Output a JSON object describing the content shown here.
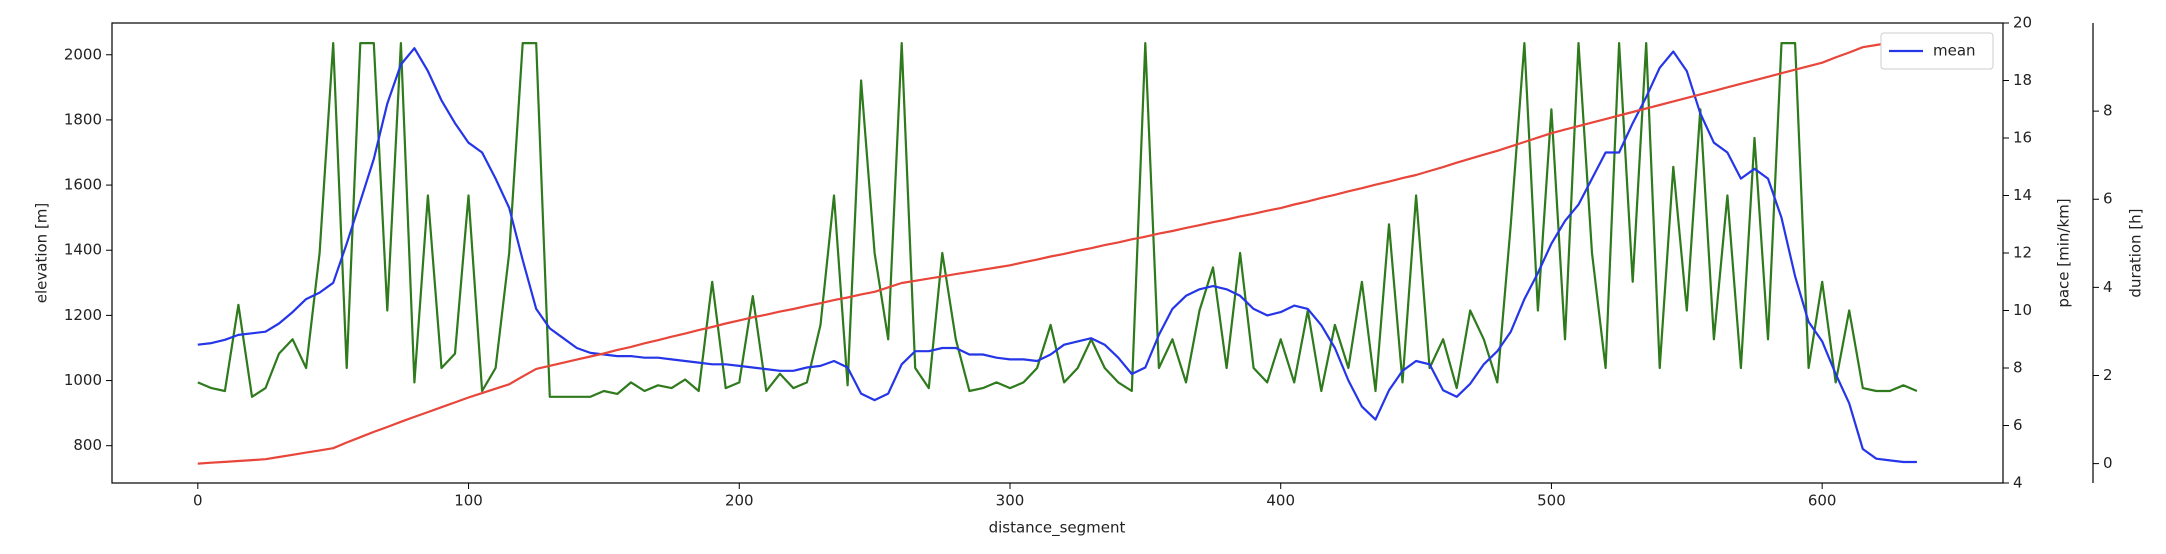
{
  "chart_data": {
    "type": "line",
    "xlabel": "distance_segment",
    "ylabel": "elevation [m]",
    "y2label": "pace [min/km]",
    "y3label": "duration [h]",
    "xlim": [
      -31.7,
      666.8
    ],
    "xticks": [
      0,
      100,
      200,
      300,
      400,
      500,
      600
    ],
    "ylim": [
      685.5,
      2097.5
    ],
    "yticks": [
      800,
      1000,
      1200,
      1400,
      1600,
      1800,
      2000
    ],
    "y2lim": [
      4,
      20
    ],
    "y2ticks": [
      4,
      6,
      8,
      10,
      12,
      14,
      16,
      18,
      20
    ],
    "y3lim": [
      -0.44,
      10.0
    ],
    "y3ticks": [
      0,
      2,
      4,
      6,
      8
    ],
    "legend": "upper right",
    "x": [
      0,
      5,
      10,
      15,
      20,
      25,
      30,
      35,
      40,
      45,
      50,
      55,
      60,
      65,
      70,
      75,
      80,
      85,
      90,
      95,
      100,
      105,
      110,
      115,
      120,
      125,
      130,
      135,
      140,
      145,
      150,
      155,
      160,
      165,
      170,
      175,
      180,
      185,
      190,
      195,
      200,
      205,
      210,
      215,
      220,
      225,
      230,
      235,
      240,
      245,
      250,
      255,
      260,
      265,
      270,
      275,
      280,
      285,
      290,
      295,
      300,
      305,
      310,
      315,
      320,
      325,
      330,
      335,
      340,
      345,
      350,
      355,
      360,
      365,
      370,
      375,
      380,
      385,
      390,
      395,
      400,
      405,
      410,
      415,
      420,
      425,
      430,
      435,
      440,
      445,
      450,
      455,
      460,
      465,
      470,
      475,
      480,
      485,
      490,
      495,
      500,
      505,
      510,
      515,
      520,
      525,
      530,
      535,
      540,
      545,
      550,
      555,
      560,
      565,
      570,
      575,
      580,
      585,
      590,
      595,
      600,
      605,
      610,
      615,
      620,
      625,
      630,
      635
    ],
    "series": [
      {
        "axis": "y2",
        "color": "#2e7a1c",
        "values": [
          7.5,
          7.3,
          7.2,
          10.2,
          7.0,
          7.3,
          8.5,
          9.0,
          8.0,
          12.0,
          19.3,
          8.0,
          19.3,
          19.3,
          10.0,
          19.3,
          7.5,
          14.0,
          8.0,
          8.5,
          14.0,
          7.2,
          8.0,
          12.0,
          19.3,
          19.3,
          7.0,
          7.0,
          7.0,
          7.0,
          7.2,
          7.1,
          7.5,
          7.2,
          7.4,
          7.3,
          7.6,
          7.2,
          11.0,
          7.3,
          7.5,
          10.5,
          7.2,
          7.8,
          7.3,
          7.5,
          9.5,
          14.0,
          7.4,
          18.0,
          12.0,
          9.0,
          19.3,
          8.0,
          7.3,
          12.0,
          9.0,
          7.2,
          7.3,
          7.5,
          7.3,
          7.5,
          8.0,
          9.5,
          7.5,
          8.0,
          9.0,
          8.0,
          7.5,
          7.2,
          19.3,
          8.0,
          9.0,
          7.5,
          10.0,
          11.5,
          8.0,
          12.0,
          8.0,
          7.5,
          9.0,
          7.5,
          10.0,
          7.2,
          9.5,
          8.0,
          11.0,
          7.2,
          13.0,
          7.5,
          14.0,
          8.0,
          9.0,
          7.3,
          10.0,
          9.0,
          7.5,
          13.0,
          19.3,
          10.0,
          17.0,
          9.0,
          19.3,
          12.0,
          8.0,
          19.3,
          11.0,
          19.3,
          8.0,
          15.0,
          10.0,
          17.0,
          9.0,
          14.0,
          8.0,
          16.0,
          9.0,
          19.3,
          19.3,
          8.0,
          11.0,
          7.5,
          10.0,
          7.3,
          7.2,
          7.2,
          7.4,
          7.2
        ]
      },
      {
        "name": "mean",
        "axis": "y",
        "color": "#2536e8",
        "values": [
          1110,
          1115,
          1125,
          1140,
          1145,
          1150,
          1175,
          1210,
          1250,
          1270,
          1300,
          1420,
          1550,
          1680,
          1850,
          1970,
          2020,
          1950,
          1860,
          1790,
          1730,
          1700,
          1620,
          1530,
          1370,
          1220,
          1160,
          1130,
          1100,
          1085,
          1080,
          1075,
          1075,
          1070,
          1070,
          1065,
          1060,
          1055,
          1050,
          1050,
          1045,
          1040,
          1035,
          1030,
          1030,
          1040,
          1045,
          1060,
          1040,
          960,
          940,
          960,
          1050,
          1090,
          1090,
          1100,
          1100,
          1080,
          1080,
          1070,
          1065,
          1065,
          1060,
          1080,
          1110,
          1120,
          1130,
          1110,
          1070,
          1020,
          1040,
          1140,
          1220,
          1260,
          1280,
          1290,
          1280,
          1260,
          1220,
          1200,
          1210,
          1230,
          1220,
          1170,
          1100,
          1000,
          920,
          880,
          970,
          1030,
          1060,
          1050,
          970,
          950,
          990,
          1050,
          1090,
          1150,
          1250,
          1330,
          1420,
          1490,
          1540,
          1620,
          1700,
          1700,
          1790,
          1870,
          1960,
          2010,
          1950,
          1820,
          1730,
          1700,
          1620,
          1650,
          1620,
          1500,
          1320,
          1180,
          1120,
          1020,
          930,
          790,
          760,
          755,
          750,
          750
        ]
      },
      {
        "axis": "y3",
        "color": "#e8463a",
        "values": [
          0,
          0.02,
          0.04,
          0.06,
          0.08,
          0.1,
          0.15,
          0.2,
          0.25,
          0.3,
          0.35,
          0.48,
          0.6,
          0.72,
          0.83,
          0.95,
          1.06,
          1.17,
          1.28,
          1.39,
          1.5,
          1.6,
          1.7,
          1.8,
          1.98,
          2.15,
          2.22,
          2.29,
          2.36,
          2.43,
          2.5,
          2.58,
          2.65,
          2.73,
          2.8,
          2.88,
          2.95,
          3.03,
          3.1,
          3.18,
          3.25,
          3.32,
          3.38,
          3.45,
          3.51,
          3.58,
          3.64,
          3.71,
          3.77,
          3.84,
          3.9,
          4.0,
          4.1,
          4.15,
          4.2,
          4.25,
          4.3,
          4.35,
          4.4,
          4.45,
          4.5,
          4.57,
          4.63,
          4.7,
          4.76,
          4.83,
          4.89,
          4.96,
          5.02,
          5.09,
          5.15,
          5.22,
          5.28,
          5.35,
          5.41,
          5.48,
          5.54,
          5.61,
          5.67,
          5.74,
          5.8,
          5.88,
          5.95,
          6.03,
          6.1,
          6.18,
          6.25,
          6.33,
          6.4,
          6.48,
          6.55,
          6.64,
          6.73,
          6.83,
          6.92,
          7.01,
          7.1,
          7.2,
          7.3,
          7.4,
          7.5,
          7.58,
          7.66,
          7.74,
          7.82,
          7.9,
          7.98,
          8.06,
          8.14,
          8.22,
          8.3,
          8.38,
          8.46,
          8.54,
          8.62,
          8.7,
          8.78,
          8.86,
          8.94,
          9.02,
          9.1,
          9.22,
          9.33,
          9.45,
          9.5,
          9.55,
          9.6,
          9.65
        ]
      }
    ]
  }
}
